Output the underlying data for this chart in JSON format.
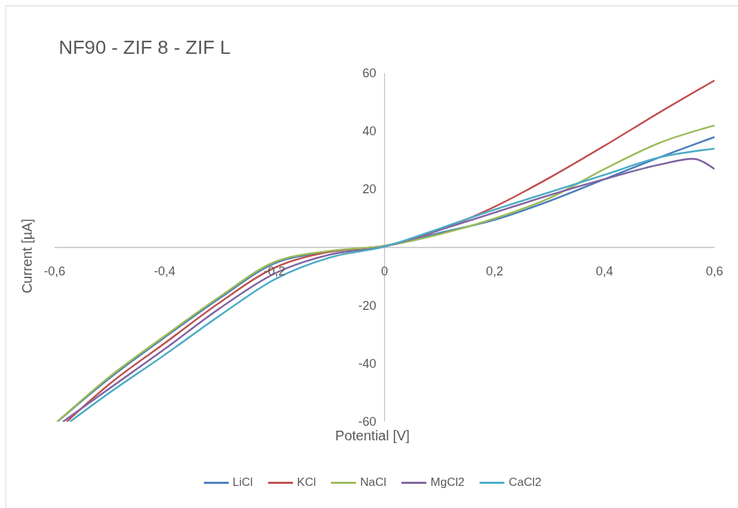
{
  "chart_data": {
    "type": "line",
    "title": "NF90 - ZIF 8 - ZIF L",
    "xlabel": "Potential [V]",
    "ylabel": "Current [µA]",
    "xlim": [
      -0.6,
      0.6
    ],
    "xticks": [
      {
        "value": -0.6,
        "label": "-0,6"
      },
      {
        "value": -0.4,
        "label": "-0,4"
      },
      {
        "value": -0.2,
        "label": "-0,2"
      },
      {
        "value": 0,
        "label": "0"
      },
      {
        "value": 0.2,
        "label": "0,2"
      },
      {
        "value": 0.4,
        "label": "0,4"
      },
      {
        "value": 0.6,
        "label": "0,6"
      }
    ],
    "ylim": [
      -60,
      60
    ],
    "yticks": [
      -60,
      -40,
      -20,
      20,
      40,
      60
    ],
    "grid": false,
    "legend": "bottom",
    "marker": "none",
    "line_style": "solid",
    "series": [
      {
        "name": "LiCl",
        "color": "#4a7ebb",
        "x": [
          -0.595,
          -0.5,
          -0.4,
          -0.3,
          -0.2,
          -0.1,
          0,
          0.1,
          0.2,
          0.3,
          0.4,
          0.5,
          0.6
        ],
        "values": [
          -60,
          -45,
          -31,
          -17.5,
          -5.5,
          -1.5,
          0.5,
          5,
          9.5,
          16,
          23.5,
          31,
          38
        ]
      },
      {
        "name": "KCl",
        "color": "#c0504d",
        "x": [
          -0.578,
          -0.5,
          -0.4,
          -0.3,
          -0.2,
          -0.1,
          0,
          0.1,
          0.2,
          0.3,
          0.4,
          0.5,
          0.6
        ],
        "values": [
          -60,
          -47,
          -33,
          -19,
          -7,
          -1.5,
          0.5,
          6,
          14,
          24,
          35,
          46.5,
          57.5
        ]
      },
      {
        "name": "NaCl",
        "color": "#9bbb59",
        "x": [
          -0.595,
          -0.5,
          -0.4,
          -0.3,
          -0.2,
          -0.1,
          0,
          0.1,
          0.2,
          0.3,
          0.4,
          0.5,
          0.6
        ],
        "values": [
          -60,
          -44.5,
          -30.5,
          -17,
          -5,
          -1.2,
          0.5,
          4.5,
          10,
          17,
          27,
          36,
          42
        ]
      },
      {
        "name": "MgCl2",
        "color": "#8064a2",
        "x": [
          -0.585,
          -0.5,
          -0.4,
          -0.3,
          -0.2,
          -0.1,
          0,
          0.1,
          0.2,
          0.3,
          0.4,
          0.5,
          0.56,
          0.6
        ],
        "values": [
          -60,
          -48.5,
          -35,
          -21,
          -9,
          -2.5,
          0.3,
          6,
          12,
          18,
          23.5,
          28.5,
          30.5,
          27
        ]
      },
      {
        "name": "CaCl2",
        "color": "#4bacc6",
        "x": [
          -0.572,
          -0.5,
          -0.4,
          -0.3,
          -0.2,
          -0.1,
          0,
          0.1,
          0.2,
          0.3,
          0.4,
          0.5,
          0.6
        ],
        "values": [
          -60,
          -50,
          -37,
          -23.5,
          -11,
          -3.5,
          0.3,
          6.5,
          13,
          19,
          25,
          31,
          34
        ]
      }
    ]
  }
}
